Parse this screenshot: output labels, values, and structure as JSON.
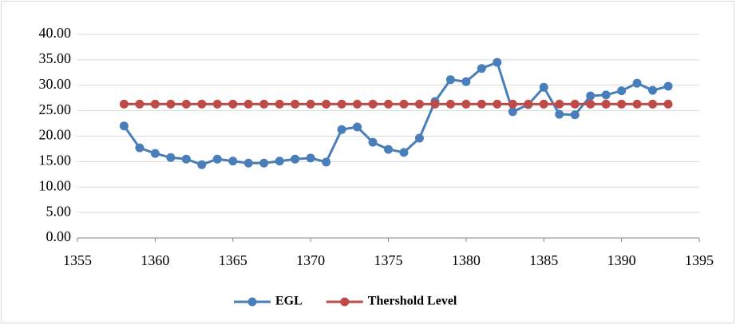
{
  "chart_data": {
    "type": "line",
    "x": [
      1358,
      1359,
      1360,
      1361,
      1362,
      1363,
      1364,
      1365,
      1366,
      1367,
      1368,
      1369,
      1370,
      1371,
      1372,
      1373,
      1374,
      1375,
      1376,
      1377,
      1378,
      1379,
      1380,
      1381,
      1382,
      1383,
      1384,
      1385,
      1386,
      1387,
      1388,
      1389,
      1390,
      1391,
      1392,
      1393
    ],
    "series": [
      {
        "name": "EGL",
        "color": "#4a7ebb",
        "values": [
          22.0,
          17.7,
          16.6,
          15.8,
          15.5,
          14.4,
          15.5,
          15.1,
          14.7,
          14.7,
          15.1,
          15.5,
          15.7,
          14.9,
          21.3,
          21.8,
          18.8,
          17.4,
          16.8,
          19.6,
          26.8,
          31.1,
          30.7,
          33.3,
          34.5,
          24.8,
          26.2,
          29.6,
          24.3,
          24.2,
          27.9,
          28.1,
          28.9,
          30.4,
          29.0,
          29.8
        ]
      },
      {
        "name": "Thershold Level",
        "color": "#be4b48",
        "values": [
          26.3,
          26.3,
          26.3,
          26.3,
          26.3,
          26.3,
          26.3,
          26.3,
          26.3,
          26.3,
          26.3,
          26.3,
          26.3,
          26.3,
          26.3,
          26.3,
          26.3,
          26.3,
          26.3,
          26.3,
          26.3,
          26.3,
          26.3,
          26.3,
          26.3,
          26.3,
          26.3,
          26.3,
          26.3,
          26.3,
          26.3,
          26.3,
          26.3,
          26.3,
          26.3,
          26.3
        ]
      }
    ],
    "xlim": [
      1355,
      1395
    ],
    "xticks": [
      1355,
      1360,
      1365,
      1370,
      1375,
      1380,
      1385,
      1390,
      1395
    ],
    "ylim": [
      0,
      40
    ],
    "yticks": [
      {
        "value": 0,
        "label": "0.00"
      },
      {
        "value": 5,
        "label": "5.00"
      },
      {
        "value": 10,
        "label": "10.00"
      },
      {
        "value": 15,
        "label": "15.00"
      },
      {
        "value": 20,
        "label": "20.00"
      },
      {
        "value": 25,
        "label": "25.00"
      },
      {
        "value": 30,
        "label": "30.00"
      },
      {
        "value": 35,
        "label": "35.00"
      },
      {
        "value": 40,
        "label": "40.00"
      }
    ],
    "grid": true,
    "legend": "bottom"
  }
}
